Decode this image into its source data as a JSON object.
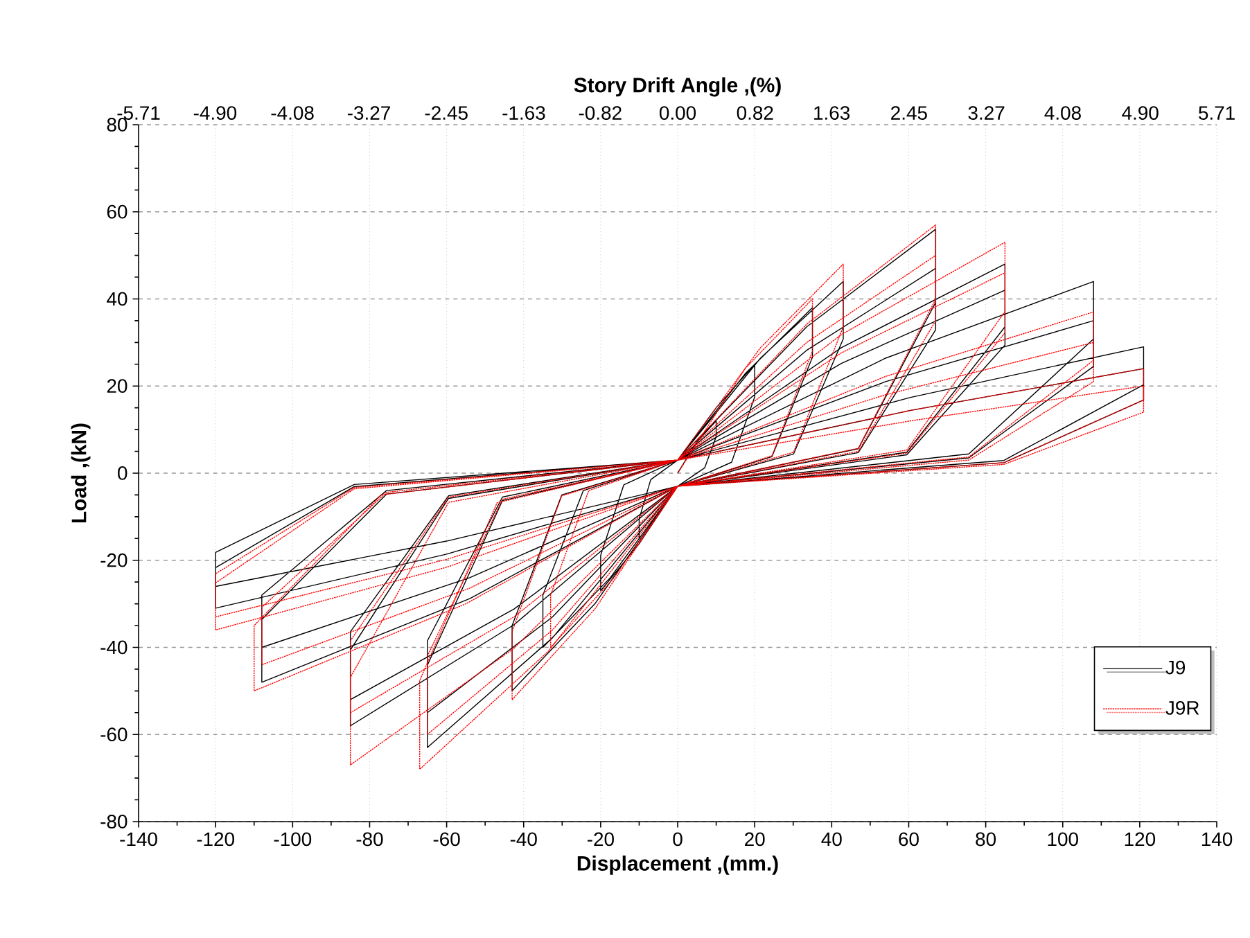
{
  "chart_data": {
    "type": "line",
    "xlabel": "Displacement ,(mm.)",
    "ylabel": "Load ,(kN)",
    "x2label": "Story Drift Angle ,(%)",
    "xlim": [
      -140,
      140
    ],
    "xticks": [
      -140,
      -120,
      -100,
      -80,
      -60,
      -40,
      -20,
      0,
      20,
      40,
      60,
      80,
      100,
      120,
      140
    ],
    "ylim": [
      -80,
      80
    ],
    "yticks": [
      -80,
      -60,
      -40,
      -20,
      0,
      20,
      40,
      60,
      80
    ],
    "x2lim": [
      -5.71,
      5.71
    ],
    "x2ticks": [
      {
        "value": -5.71,
        "label": "-5.71"
      },
      {
        "value": -4.9,
        "label": "-4.90"
      },
      {
        "value": -4.08,
        "label": "-4.08"
      },
      {
        "value": -3.27,
        "label": "-3.27"
      },
      {
        "value": -2.45,
        "label": "-2.45"
      },
      {
        "value": -1.63,
        "label": "-1.63"
      },
      {
        "value": -0.82,
        "label": "-0.82"
      },
      {
        "value": 0,
        "label": "0.00"
      },
      {
        "value": 0.82,
        "label": "0.82"
      },
      {
        "value": 1.63,
        "label": "1.63"
      },
      {
        "value": 2.45,
        "label": "2.45"
      },
      {
        "value": 3.27,
        "label": "3.27"
      },
      {
        "value": 4.08,
        "label": "4.08"
      },
      {
        "value": 4.9,
        "label": "4.90"
      },
      {
        "value": 5.71,
        "label": "5.71"
      }
    ],
    "grid": true,
    "legend": "bottom right",
    "marker": "none",
    "series": [
      {
        "name": "J9",
        "color": "#000000",
        "line_style": "solid",
        "x": [
          0,
          5,
          10,
          10,
          7,
          0,
          -5,
          -10,
          -10,
          -7,
          0,
          10,
          20,
          20,
          14,
          0,
          -10,
          -20,
          -20,
          -14,
          0,
          17.5,
          35,
          35,
          24.5,
          0,
          -17.5,
          -35,
          -35,
          -24.5,
          0,
          21.5,
          43,
          43,
          30.1,
          0,
          -21.5,
          -43,
          -43,
          -30.1,
          0,
          33.5,
          67,
          67,
          46.9,
          0,
          -32.5,
          -65,
          -65,
          -45.5,
          0,
          33.5,
          67,
          67,
          46.9,
          0,
          -32.5,
          -65,
          -65,
          -45.5,
          0,
          42.5,
          85,
          85,
          59.5,
          0,
          -42.5,
          -85,
          -85,
          -59.5,
          0,
          42.5,
          85,
          85,
          59.5,
          0,
          -42.5,
          -85,
          -85,
          -59.5,
          0,
          54,
          108,
          108,
          75.6,
          0,
          -54,
          -108,
          -108,
          -75.6,
          0,
          54,
          108,
          108,
          75.6,
          0,
          -54,
          -108,
          -108,
          -75.6,
          0,
          60.5,
          121,
          121,
          84.7,
          0,
          -60,
          -120,
          -120,
          -84,
          0,
          60.5,
          121,
          121,
          84.7,
          0,
          -60,
          -120,
          -120,
          -84,
          0
        ],
        "values": [
          0,
          7.2,
          12,
          8.4,
          1.2,
          -3,
          -9,
          -15,
          -10.5,
          -1.5,
          3,
          15,
          25,
          17.5,
          2.5,
          -3,
          -16.2,
          -27,
          -18.9,
          -2.7,
          3,
          22.8,
          38,
          26.6,
          3.8,
          -3,
          -24,
          -40,
          -28,
          -4,
          3,
          26.4,
          44,
          30.8,
          4.4,
          -3,
          -30,
          -50,
          -35,
          -5,
          3,
          33.6,
          56,
          39.2,
          5.6,
          -3,
          -37.8,
          -63,
          -44.1,
          -6.3,
          3,
          28.2,
          47,
          32.9,
          4.7,
          -3,
          -33,
          -55,
          -38.5,
          -5.5,
          3,
          28.8,
          48,
          33.6,
          4.8,
          -3,
          -34.8,
          -58,
          -40.6,
          -5.8,
          3,
          25.2,
          42,
          29.4,
          4.2,
          -3,
          -31.2,
          -52,
          -36.4,
          -5.2,
          3,
          26.4,
          44,
          30.8,
          4.4,
          -3,
          -28.8,
          -48,
          -33.6,
          -4.8,
          3,
          21,
          35,
          24.5,
          3.5,
          -3,
          -24,
          -40,
          -28,
          -4,
          3,
          17.4,
          29,
          20.3,
          2.9,
          -3,
          -15.6,
          -26,
          -18.2,
          -2.6,
          3,
          14.4,
          24,
          16.8,
          2.4,
          -3,
          -18.6,
          -31,
          -21.7,
          -3.1,
          3
        ]
      },
      {
        "name": "J9R",
        "color": "#ff0000",
        "line_style": "dotted",
        "x": [
          0,
          17.5,
          35,
          35,
          24.5,
          0,
          -16.5,
          -33,
          -33,
          -23.1,
          0,
          21.5,
          43,
          43,
          30.1,
          0,
          -21.5,
          -43,
          -43,
          -30.1,
          0,
          33.5,
          67,
          67,
          46.9,
          0,
          -33.5,
          -67,
          -67,
          -46.9,
          0,
          33.5,
          67,
          67,
          46.9,
          0,
          -32.5,
          -65,
          -65,
          -45.5,
          0,
          42.5,
          85,
          85,
          59.5,
          0,
          -42.5,
          -85,
          -85,
          -59.5,
          0,
          42.5,
          85,
          85,
          59.5,
          0,
          -42.5,
          -85,
          -85,
          -59.5,
          0,
          54,
          108,
          108,
          75.6,
          0,
          -55,
          -110,
          -110,
          -77,
          0,
          54,
          108,
          108,
          75.6,
          0,
          -54,
          -108,
          -108,
          -75.6,
          0,
          60.5,
          121,
          121,
          84.7,
          0,
          -60,
          -120,
          -120,
          -84,
          0,
          60.5,
          121,
          121,
          84.7,
          0,
          -60,
          -120,
          -120,
          -84,
          0
        ],
        "values": [
          0,
          24,
          40,
          28,
          4,
          -3,
          -24,
          -40,
          -28,
          -4,
          3,
          28.8,
          48,
          33.6,
          4.8,
          -3,
          -31.2,
          -52,
          -36.4,
          -5.2,
          3,
          34.2,
          57,
          39.9,
          5.7,
          -3,
          -40.8,
          -68,
          -47.6,
          -6.8,
          3,
          30,
          50,
          35,
          5,
          -3,
          -36,
          -60,
          -42,
          -6,
          3,
          31.8,
          53,
          37.1,
          5.3,
          -3,
          -40.2,
          -67,
          -46.9,
          -6.7,
          3,
          27.6,
          46,
          32.2,
          4.6,
          -3,
          -33,
          -55,
          -38.5,
          -5.5,
          3,
          22.2,
          37,
          25.9,
          3.7,
          -3,
          -30,
          -50,
          -35,
          -5,
          3,
          18,
          30,
          21,
          3,
          -3,
          -26.4,
          -44,
          -30.8,
          -4.4,
          3,
          14.4,
          24,
          16.8,
          2.4,
          -3,
          -21.6,
          -36,
          -25.2,
          -3.6,
          3,
          12,
          20,
          14,
          2,
          -3,
          -19.8,
          -33,
          -23.1,
          -3.3,
          3
        ]
      }
    ]
  }
}
